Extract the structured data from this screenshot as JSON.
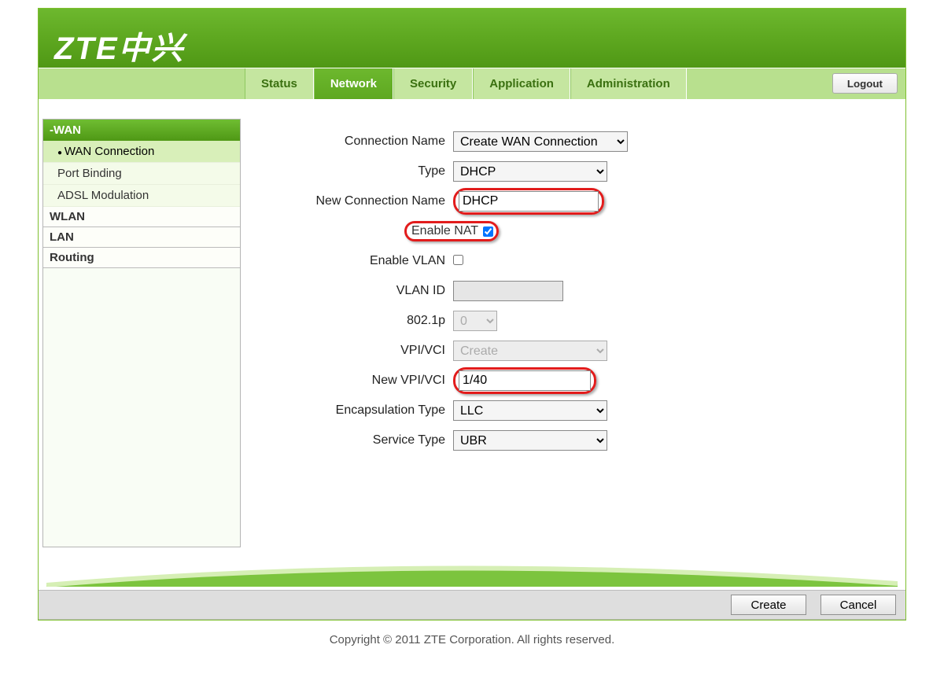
{
  "logo_text": "ZTE中兴",
  "nav": {
    "tabs": [
      "Status",
      "Network",
      "Security",
      "Application",
      "Administration"
    ],
    "active": 1,
    "logout": "Logout"
  },
  "sidebar": {
    "section": "-WAN",
    "subs": [
      "WAN Connection",
      "Port Binding",
      "ADSL Modulation"
    ],
    "active_sub": 0,
    "tops": [
      "WLAN",
      "LAN",
      "Routing"
    ]
  },
  "form": {
    "labels": {
      "conn_name": "Connection Name",
      "type": "Type",
      "new_conn_name": "New Connection Name",
      "enable_nat": "Enable NAT",
      "enable_vlan": "Enable VLAN",
      "vlan_id": "VLAN ID",
      "p8021": "802.1p",
      "vpi_vci": "VPI/VCI",
      "new_vpi_vci": "New VPI/VCI",
      "encap": "Encapsulation Type",
      "service": "Service Type"
    },
    "values": {
      "conn_name": "Create WAN Connection",
      "type": "DHCP",
      "new_conn_name": "DHCP",
      "enable_nat": true,
      "enable_vlan": false,
      "vlan_id": "",
      "p8021": "0",
      "vpi_vci": "Create",
      "new_vpi_vci": "1/40",
      "encap": "LLC",
      "service": "UBR"
    }
  },
  "buttons": {
    "create": "Create",
    "cancel": "Cancel"
  },
  "copyright": "Copyright © 2011 ZTE Corporation. All rights reserved.",
  "colors": {
    "accent": "#5ea820",
    "highlight": "#e21c1c"
  }
}
